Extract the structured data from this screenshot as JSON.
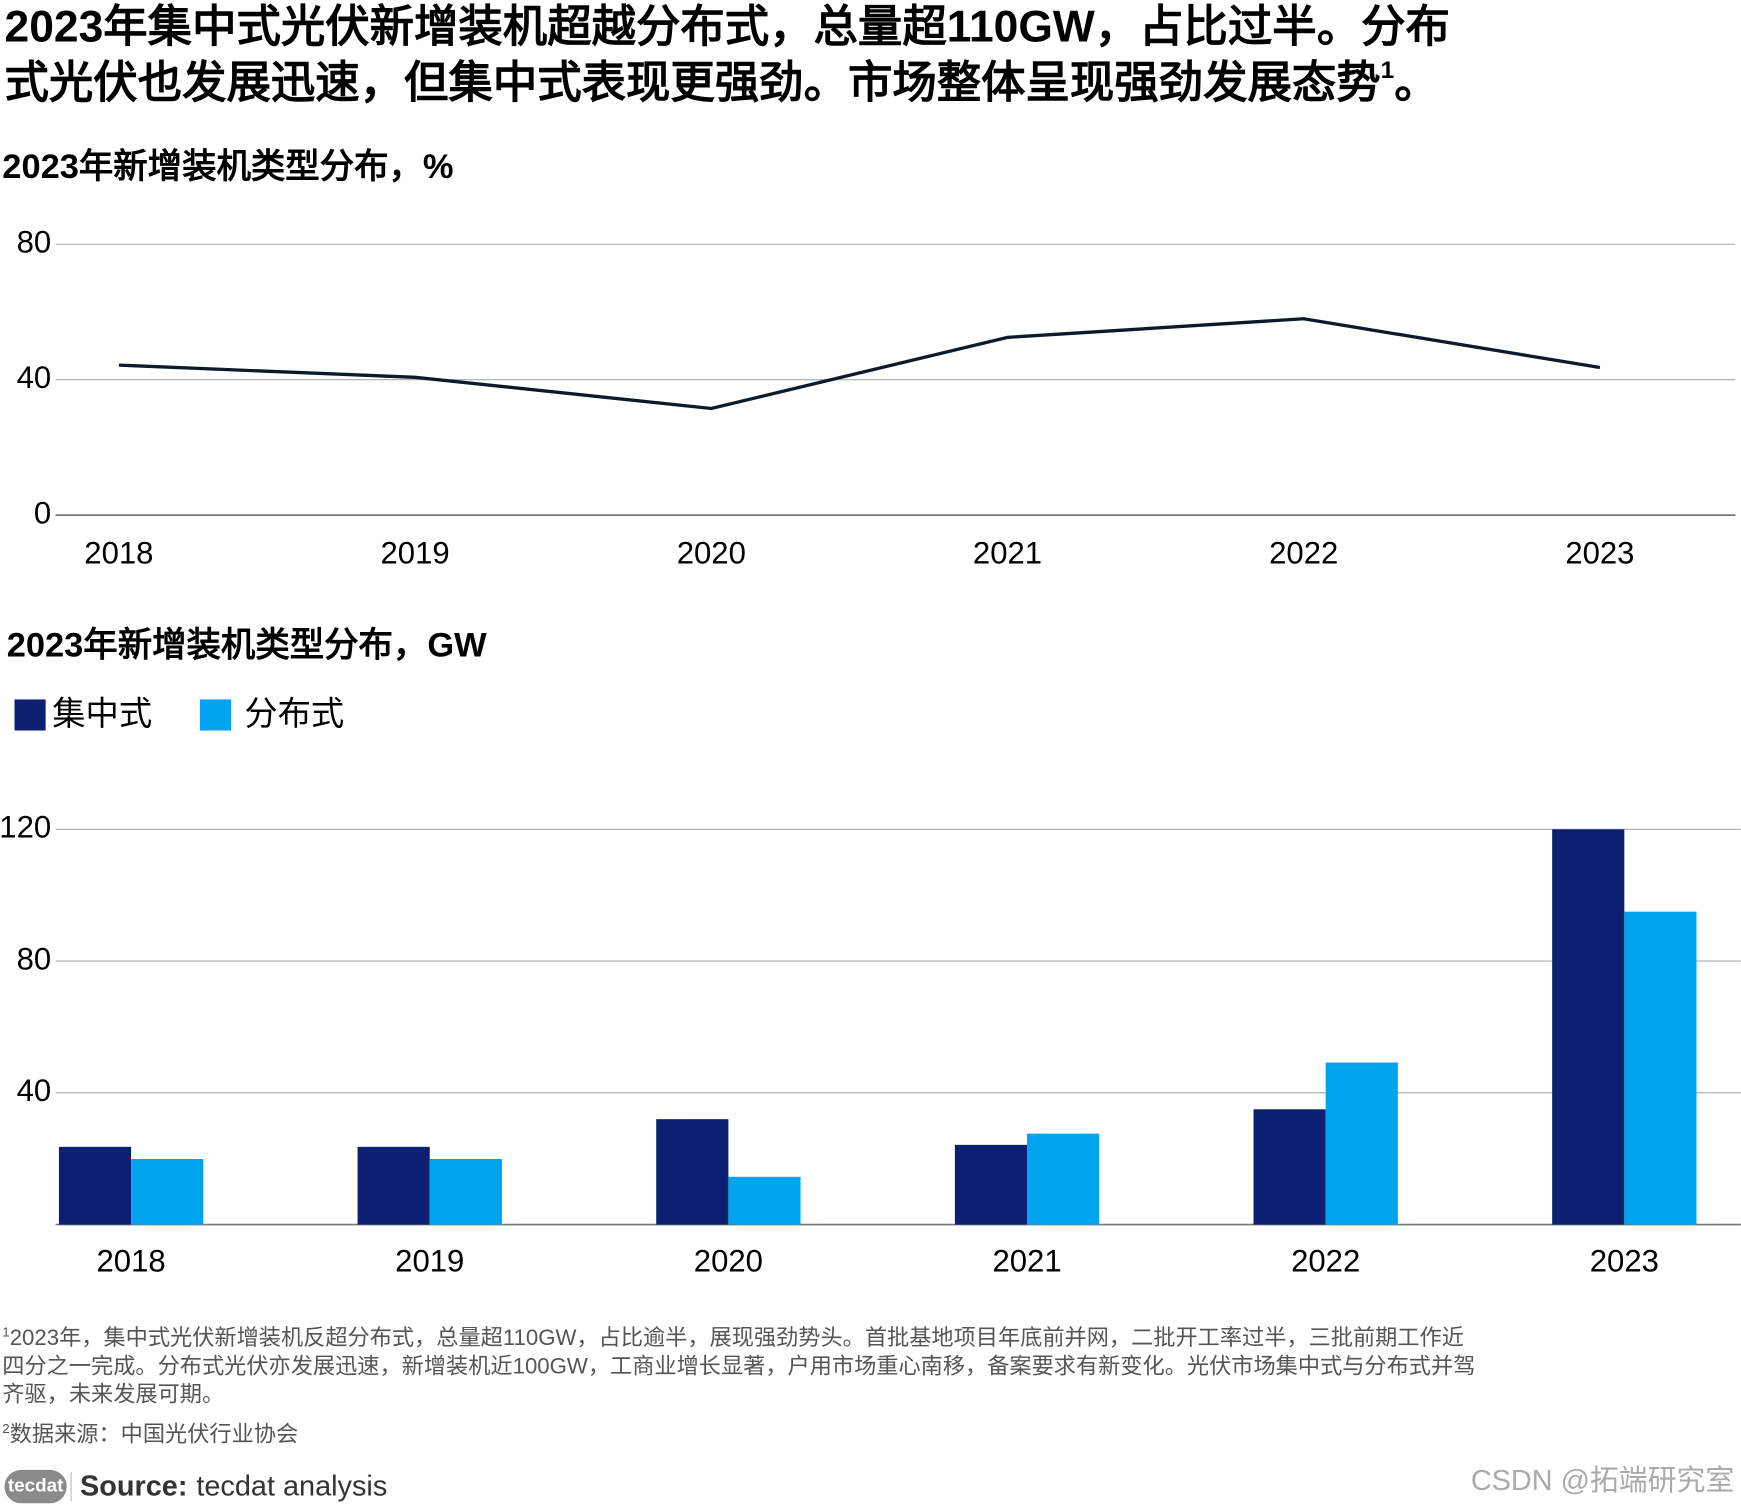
{
  "header": {
    "title_lines": [
      "2023年集中式光伏新增装机超越分布式，总量超110GW，占比过半。分布",
      "式光伏也发展迅速，但集中式表现更强劲。市场整体呈现强劲发展态势"
    ],
    "title_note_ref": "1",
    "title_end": "。"
  },
  "chart_data": [
    {
      "type": "line",
      "title": "2023年新增装机类型分布，%",
      "categories": [
        "2018",
        "2019",
        "2020",
        "2021",
        "2022",
        "2023"
      ],
      "values": [
        44.3,
        40.7,
        31.5,
        52.5,
        58,
        43.6
      ],
      "color": "#0b1b2b",
      "ylim": [
        0,
        80
      ],
      "yticks": [
        0,
        40,
        80
      ],
      "grid": true
    },
    {
      "type": "bar",
      "title": "2023年新增装机类型分布，GW",
      "categories": [
        "2018",
        "2019",
        "2020",
        "2021",
        "2022",
        "2023"
      ],
      "series": [
        {
          "name": "集中式",
          "color": "#0c1f70",
          "values": [
            23.6,
            23.6,
            32,
            24.2,
            35,
            120
          ]
        },
        {
          "name": "分布式",
          "color": "#00a3ee",
          "values": [
            19.9,
            19.9,
            14.5,
            27.6,
            49.2,
            95
          ]
        }
      ],
      "ylim": [
        0,
        120
      ],
      "yticks": [
        40,
        80,
        120
      ],
      "grid": true,
      "legend": "top-left"
    }
  ],
  "footnotes": [
    {
      "ref": "1",
      "lines": [
        "2023年，集中式光伏新增装机反超分布式，总量超110GW，占比逾半，展现强劲势头。首批基地项目年底前并网，二批开工率过半，三批前期工作近",
        "四分之一完成。分布式光伏亦发展迅速，新增装机近100GW，工商业增长显著，户用市场重心南移，备案要求有新变化。光伏市场集中式与分布式并驾",
        "齐驱，未来发展可期。"
      ]
    },
    {
      "ref": "2",
      "lines": [
        "数据来源：中国光伏行业协会"
      ]
    }
  ],
  "source": {
    "logo": "tecdat",
    "label": "Source:",
    "text": "tecdat analysis"
  },
  "watermark": "CSDN @拓端研究室"
}
